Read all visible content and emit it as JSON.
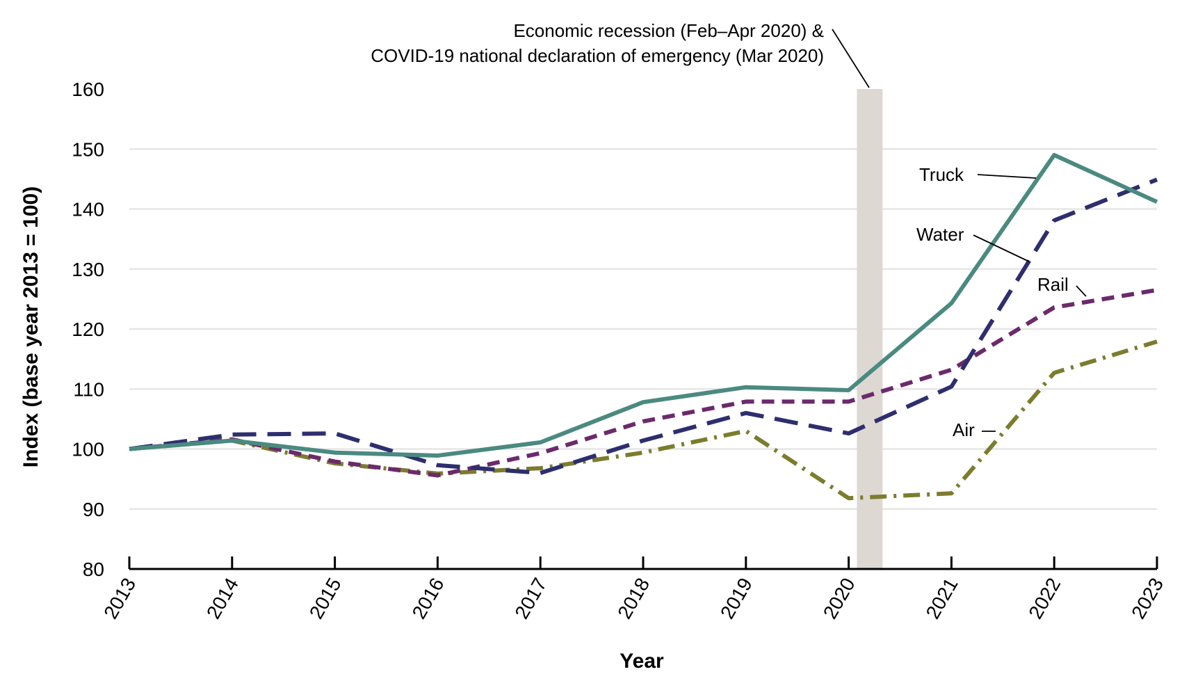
{
  "chart_data": {
    "type": "line",
    "xlabel": "Year",
    "ylabel": "Index (base year 2013 = 100)",
    "x": [
      "2013",
      "2014",
      "2015",
      "2016",
      "2017",
      "2018",
      "2019",
      "2020",
      "2021",
      "2022",
      "2023"
    ],
    "ylim": [
      80,
      160
    ],
    "yticks": [
      80,
      90,
      100,
      110,
      120,
      130,
      140,
      150,
      160
    ],
    "grid": "horizontal",
    "series": [
      {
        "name": "Truck",
        "color": "#4a8a80",
        "style": "solid",
        "values": [
          100,
          101.4,
          99.4,
          98.9,
          101.1,
          107.8,
          110.3,
          109.8,
          124.3,
          149.0,
          141.2
        ]
      },
      {
        "name": "Water",
        "color": "#2e2e6e",
        "style": "long-dash",
        "values": [
          100,
          102.4,
          102.6,
          97.3,
          96.0,
          101.4,
          106.0,
          102.6,
          110.4,
          138.1,
          144.9
        ]
      },
      {
        "name": "Rail",
        "color": "#6b2a6b",
        "style": "short-dash",
        "values": [
          100,
          101.6,
          97.9,
          95.6,
          99.3,
          104.6,
          107.9,
          107.9,
          113.2,
          123.6,
          126.5
        ]
      },
      {
        "name": "Air",
        "color": "#7c7c2e",
        "style": "dash-dot",
        "values": [
          100,
          101.4,
          97.6,
          95.9,
          96.8,
          99.4,
          103.0,
          91.8,
          92.6,
          112.7,
          117.9
        ]
      }
    ],
    "recession": {
      "start": 2020.08,
      "end": 2020.33,
      "color": "#ddd8d2"
    },
    "annotation": {
      "line1": "Economic recession (Feb–Apr 2020) &",
      "line2": "COVID-19 national declaration of emergency (Mar 2020)"
    }
  }
}
